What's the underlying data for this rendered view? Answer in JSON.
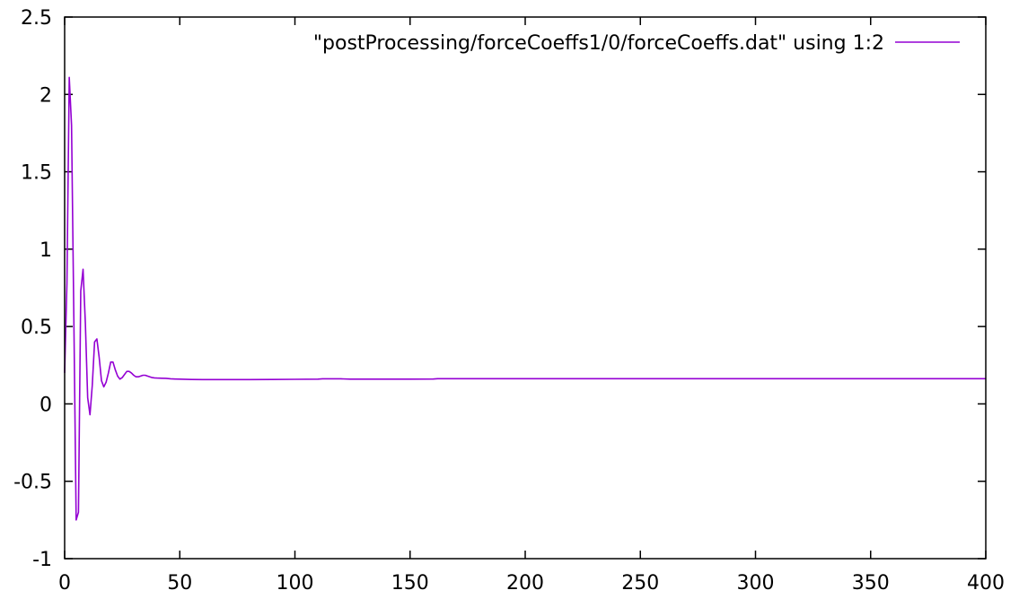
{
  "chart_data": {
    "type": "line",
    "title": "",
    "xlabel": "",
    "ylabel": "",
    "xlim": [
      0,
      400
    ],
    "ylim": [
      -1,
      2.5
    ],
    "x_ticks": [
      "0",
      "50",
      "100",
      "150",
      "200",
      "250",
      "300",
      "350",
      "400"
    ],
    "y_ticks": [
      "-1",
      "-0.5",
      "0",
      "0.5",
      "1",
      "1.5",
      "2",
      "2.5"
    ],
    "grid": false,
    "legend_position": "top-right",
    "series": [
      {
        "name": "\"postProcessing/forceCoeffs1/0/forceCoeffs.dat\" using 1:2",
        "color": "#9400d3",
        "x": [
          0,
          1,
          2,
          3,
          4,
          5,
          6,
          7,
          8,
          9,
          10,
          11,
          12,
          13,
          14,
          15,
          16,
          17,
          18,
          19,
          20,
          21,
          22,
          23,
          24,
          25,
          26,
          27,
          28,
          29,
          30,
          31,
          32,
          33,
          34,
          35,
          36,
          37,
          38,
          39,
          40,
          42,
          44,
          46,
          48,
          50,
          55,
          60,
          70,
          80,
          90,
          100,
          110,
          112,
          120,
          124,
          130,
          140,
          150,
          160,
          162,
          180,
          200,
          250,
          300,
          350,
          400
        ],
        "y": [
          0.2,
          0.78,
          2.11,
          1.8,
          0.55,
          -0.75,
          -0.7,
          0.73,
          0.87,
          0.52,
          0.04,
          -0.07,
          0.12,
          0.4,
          0.42,
          0.3,
          0.15,
          0.11,
          0.14,
          0.2,
          0.27,
          0.27,
          0.22,
          0.18,
          0.16,
          0.17,
          0.19,
          0.21,
          0.21,
          0.2,
          0.185,
          0.175,
          0.175,
          0.18,
          0.185,
          0.185,
          0.18,
          0.175,
          0.17,
          0.168,
          0.167,
          0.166,
          0.165,
          0.162,
          0.161,
          0.16,
          0.158,
          0.157,
          0.157,
          0.157,
          0.158,
          0.159,
          0.16,
          0.162,
          0.162,
          0.16,
          0.16,
          0.16,
          0.16,
          0.161,
          0.163,
          0.163,
          0.163,
          0.163,
          0.163,
          0.163,
          0.163
        ]
      }
    ]
  }
}
